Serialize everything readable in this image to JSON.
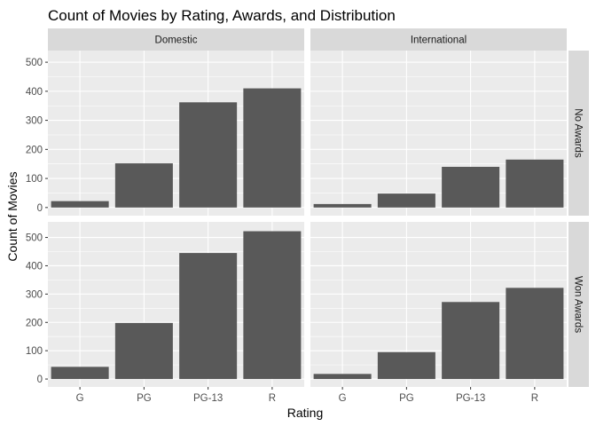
{
  "chart_data": {
    "type": "bar",
    "title": "Count of Movies by Rating, Awards, and Distribution",
    "xlabel": "Rating",
    "ylabel": "Count of Movies",
    "categories": [
      "G",
      "PG",
      "PG-13",
      "R"
    ],
    "col_facets": [
      "Domestic",
      "International"
    ],
    "row_facets": [
      "No Awards",
      "Won Awards"
    ],
    "panels": [
      {
        "row": "No Awards",
        "col": "Domestic",
        "values": [
          22,
          152,
          362,
          410
        ]
      },
      {
        "row": "No Awards",
        "col": "International",
        "values": [
          12,
          48,
          140,
          165
        ]
      },
      {
        "row": "Won Awards",
        "col": "Domestic",
        "values": [
          43,
          198,
          445,
          522
        ]
      },
      {
        "row": "Won Awards",
        "col": "International",
        "values": [
          18,
          95,
          272,
          322
        ]
      }
    ],
    "y_ticks_top": [
      0,
      100,
      200,
      300,
      400,
      500
    ],
    "y_ticks_bottom": [
      0,
      100,
      200,
      300,
      400,
      500
    ],
    "ylim_top": [
      -28,
      540
    ],
    "ylim_bottom": [
      -28,
      555
    ],
    "bar_color": "#595959",
    "grid": true,
    "legend": "none"
  }
}
